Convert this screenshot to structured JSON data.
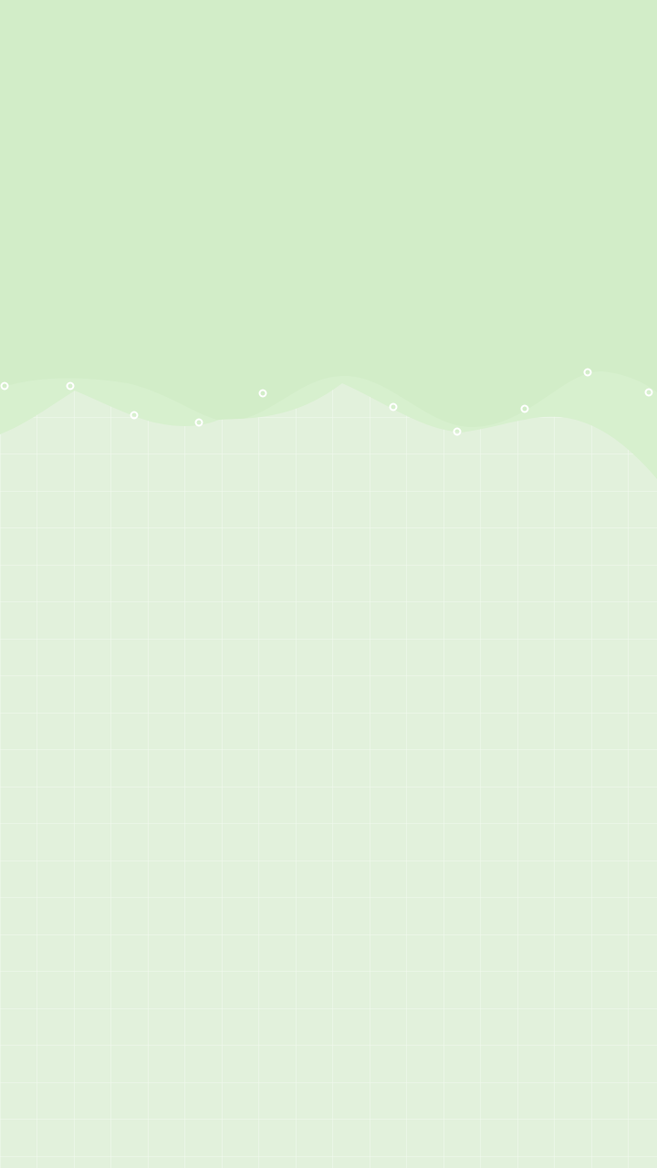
{
  "theme": {
    "top_color": "#d2edc8",
    "wave_back_color": "#d8f0cf",
    "bottom_color": "#e2f1dc",
    "grid_color": "#ffffff",
    "point_color": "#ffffff"
  },
  "decor": {
    "icon": "wave-line-decoration",
    "point_icon": "ring-dot-icon"
  }
}
